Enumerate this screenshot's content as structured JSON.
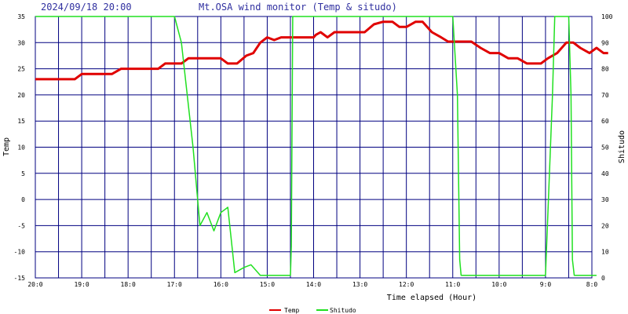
{
  "header": {
    "datetime": "2024/09/18 20:00",
    "title": "Mt.OSA wind monitor (Temp & situdo)"
  },
  "colors": {
    "temp": "#e00000",
    "shitudo": "#20e020",
    "grid": "#000080",
    "title": "#3030a0",
    "background": "#ffffff"
  },
  "chart_data": {
    "type": "line",
    "title": "Mt.OSA wind monitor (Temp & situdo)",
    "xlabel": "Time elapsed (Hour)",
    "ylabel_left": "Temp",
    "ylabel_right": "Shitudo",
    "ylim_left": [
      -15,
      35
    ],
    "ylim_right": [
      0,
      100
    ],
    "yticks_left": [
      "35",
      "30",
      "25",
      "20",
      "15",
      "10",
      "5",
      "0",
      "-5",
      "-10",
      "-15"
    ],
    "yticks_right": [
      "100",
      "90",
      "80",
      "70",
      "60",
      "50",
      "40",
      "30",
      "20",
      "10",
      "0"
    ],
    "xlim": [
      20,
      8
    ],
    "x_ticks": [
      {
        "x": 20,
        "label": "20:0"
      },
      {
        "x": 19,
        "label": "19:0"
      },
      {
        "x": 18,
        "label": "18:0"
      },
      {
        "x": 17,
        "label": "17:0"
      },
      {
        "x": 16,
        "label": "16:0"
      },
      {
        "x": 15,
        "label": "15:0"
      },
      {
        "x": 14,
        "label": "14:0"
      },
      {
        "x": 13,
        "label": "13:0"
      },
      {
        "x": 12,
        "label": "12:0"
      },
      {
        "x": 11,
        "label": "11:0"
      },
      {
        "x": 10,
        "label": "10:0"
      },
      {
        "x": 9,
        "label": "9:0"
      },
      {
        "x": 8,
        "label": "8:0"
      }
    ],
    "grid_x": [
      20,
      19.5,
      19,
      18.5,
      18,
      17.5,
      17,
      16.5,
      16,
      15.5,
      15,
      14.5,
      14,
      13.5,
      13,
      12.5,
      12,
      11.5,
      11,
      10.5,
      10,
      9.5,
      9,
      8.5,
      8
    ],
    "legend": [
      "Temp",
      "Shitudo"
    ],
    "series": [
      {
        "name": "Temp",
        "axis": "left",
        "points": [
          [
            20.0,
            23
          ],
          [
            19.15,
            23
          ],
          [
            19.0,
            24
          ],
          [
            18.35,
            24
          ],
          [
            18.15,
            25
          ],
          [
            17.35,
            25
          ],
          [
            17.2,
            26
          ],
          [
            16.85,
            26
          ],
          [
            16.7,
            27
          ],
          [
            16.0,
            27
          ],
          [
            15.85,
            26
          ],
          [
            15.65,
            26
          ],
          [
            15.45,
            27.5
          ],
          [
            15.3,
            28
          ],
          [
            15.15,
            30
          ],
          [
            15.0,
            31
          ],
          [
            14.85,
            30.5
          ],
          [
            14.7,
            31
          ],
          [
            14.0,
            31
          ],
          [
            13.95,
            31.5
          ],
          [
            13.85,
            32
          ],
          [
            13.7,
            31
          ],
          [
            13.55,
            32
          ],
          [
            13.2,
            32
          ],
          [
            12.9,
            32
          ],
          [
            12.7,
            33.5
          ],
          [
            12.5,
            34
          ],
          [
            12.3,
            34
          ],
          [
            12.15,
            33
          ],
          [
            12.0,
            33
          ],
          [
            11.8,
            34
          ],
          [
            11.65,
            34
          ],
          [
            11.45,
            32
          ],
          [
            11.25,
            31
          ],
          [
            11.1,
            30.2
          ],
          [
            10.6,
            30.2
          ],
          [
            10.4,
            29
          ],
          [
            10.2,
            28
          ],
          [
            10.0,
            28
          ],
          [
            9.8,
            27
          ],
          [
            9.6,
            27
          ],
          [
            9.4,
            26
          ],
          [
            9.1,
            26
          ],
          [
            8.95,
            27
          ],
          [
            8.75,
            28
          ],
          [
            8.55,
            30
          ],
          [
            8.4,
            30
          ],
          [
            8.25,
            29
          ],
          [
            8.05,
            28
          ],
          [
            7.9,
            29
          ],
          [
            7.75,
            28
          ],
          [
            7.65,
            28
          ]
        ]
      },
      {
        "name": "Shitudo",
        "axis": "right",
        "points": [
          [
            20.0,
            100
          ],
          [
            17.0,
            100
          ],
          [
            16.85,
            90
          ],
          [
            16.6,
            50
          ],
          [
            16.45,
            20
          ],
          [
            16.3,
            25
          ],
          [
            16.15,
            18
          ],
          [
            16.0,
            25
          ],
          [
            15.85,
            27
          ],
          [
            15.7,
            2
          ],
          [
            15.5,
            4
          ],
          [
            15.35,
            5
          ],
          [
            15.15,
            1
          ],
          [
            14.5,
            1
          ],
          [
            14.48,
            12
          ],
          [
            14.45,
            100
          ],
          [
            11.0,
            100
          ],
          [
            10.9,
            70
          ],
          [
            10.85,
            7
          ],
          [
            10.82,
            1
          ],
          [
            9.0,
            1
          ],
          [
            8.85,
            70
          ],
          [
            8.8,
            100
          ],
          [
            8.5,
            100
          ],
          [
            8.45,
            70
          ],
          [
            8.42,
            7
          ],
          [
            8.38,
            1
          ],
          [
            7.9,
            1
          ]
        ]
      }
    ]
  }
}
